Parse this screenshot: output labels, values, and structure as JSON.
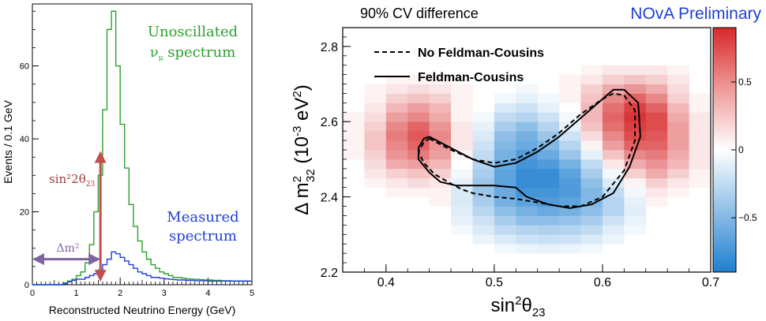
{
  "chart_data": [
    {
      "type": "line",
      "xlabel": "Reconstructed Neutrino Energy (GeV)",
      "ylabel": "Events / 0.1 GeV",
      "xlim": [
        0,
        5
      ],
      "ylim": [
        0,
        77
      ],
      "x_ticks": [
        "0",
        "1",
        "2",
        "3",
        "4",
        "5"
      ],
      "y_ticks": [
        "0",
        "20",
        "40",
        "60"
      ],
      "bin_edges_start": 0.0,
      "bin_width": 0.1,
      "series": [
        {
          "name": "Unoscillated ν_μ spectrum",
          "color": "#2ca02c",
          "values": [
            0,
            0,
            0,
            0,
            0,
            0,
            0,
            0.5,
            1,
            1.5,
            2.5,
            3.5,
            6,
            11,
            20,
            30,
            48,
            70,
            75,
            60,
            44,
            32,
            22,
            16,
            12,
            9,
            7,
            5.5,
            4.5,
            3.5,
            3,
            2.5,
            2,
            2,
            1.8,
            1.6,
            1.5,
            1.5,
            1.4,
            1.3,
            1.3,
            1.2,
            1.2,
            1.1,
            1.1,
            1.0,
            1.0,
            1.0,
            1.0,
            1.0
          ]
        },
        {
          "name": "Measured spectrum",
          "color": "#1f3fd8",
          "values": [
            0,
            0,
            0,
            0,
            0,
            0,
            0,
            0.3,
            0.8,
            1.2,
            1.5,
            1.5,
            2,
            2.5,
            3,
            4,
            5.5,
            7,
            9,
            8.5,
            7.5,
            6.5,
            5.5,
            4.5,
            3.5,
            3,
            2.5,
            2,
            2,
            1.8,
            1.6,
            1.5,
            1.4,
            1.3,
            1.3,
            1.2,
            1.2,
            1.1,
            1.1,
            1.1,
            1.0,
            1.0,
            1.0,
            1.0,
            1.0,
            1.0,
            1.0,
            1.0,
            1.0,
            1.0
          ]
        }
      ],
      "annotations": {
        "unosc_line1": "Unoscillated",
        "unosc_line2": "ν",
        "unosc_sub": "μ",
        "unosc_line2b": " spectrum",
        "meas_line1": "Measured",
        "meas_line2": "spectrum",
        "sin_label": "sin²2θ",
        "sin_sub": "23",
        "dm_label": "Δm²",
        "sin_arrow_x": 1.55,
        "sin_arrow_ymin": 1.5,
        "sin_arrow_ymax": 36,
        "dm_arrow_xmin": 0,
        "dm_arrow_xmax": 1.55,
        "dm_arrow_y": 7,
        "sin_color": "#c0504d",
        "dm_color": "#8064a2"
      }
    },
    {
      "type": "heatmap",
      "title": "90% CV difference",
      "corner_label": "NOvA Preliminary",
      "xlabel": "sin²θ23",
      "ylabel": "Δ m²32 (10⁻³ eV²)",
      "xlim": [
        0.36,
        0.7
      ],
      "ylim": [
        2.2,
        2.85
      ],
      "x_ticks": [
        "0.4",
        "0.5",
        "0.6",
        "0.7"
      ],
      "y_ticks": [
        "2.2",
        "2.4",
        "2.6",
        "2.8"
      ],
      "colorbar_ticks": [
        "0.5",
        "0",
        "−0.5"
      ],
      "zlim": [
        -0.9,
        0.9
      ],
      "grid": {
        "x0": 0.36,
        "dx": 0.02,
        "nx": 17,
        "y0": 2.2,
        "dy": 0.025,
        "ny": 26,
        "rows_bottom_to_top": [
          [
            0,
            0,
            0,
            0,
            0,
            0,
            0,
            0,
            0,
            0,
            0,
            0,
            0,
            0,
            0,
            0,
            0
          ],
          [
            0,
            0,
            0,
            0,
            0,
            0,
            0,
            0,
            0,
            0,
            0,
            0,
            0,
            0,
            0,
            0,
            0
          ],
          [
            0,
            0,
            0,
            0,
            0,
            0,
            0,
            -0.05,
            -0.08,
            -0.1,
            -0.08,
            -0.05,
            0,
            0,
            0,
            0,
            0
          ],
          [
            0,
            0,
            0,
            0,
            0,
            0,
            -0.08,
            -0.15,
            -0.2,
            -0.22,
            -0.2,
            -0.15,
            -0.08,
            0,
            0,
            0,
            0
          ],
          [
            0,
            0,
            0,
            0,
            0,
            -0.05,
            -0.15,
            -0.25,
            -0.3,
            -0.32,
            -0.3,
            -0.25,
            -0.12,
            -0.05,
            0,
            0,
            0
          ],
          [
            0,
            0,
            0,
            0,
            0,
            -0.1,
            -0.2,
            -0.35,
            -0.45,
            -0.45,
            -0.42,
            -0.35,
            -0.2,
            -0.08,
            0,
            0,
            0
          ],
          [
            0,
            0,
            0,
            0,
            0,
            -0.12,
            -0.28,
            -0.45,
            -0.55,
            -0.6,
            -0.55,
            -0.45,
            -0.3,
            -0.12,
            0,
            0,
            0
          ],
          [
            0,
            0,
            0,
            0,
            0.05,
            -0.15,
            -0.35,
            -0.55,
            -0.65,
            -0.7,
            -0.65,
            -0.5,
            -0.3,
            -0.1,
            0.05,
            0,
            0
          ],
          [
            0,
            0,
            0.05,
            0.05,
            0.05,
            -0.15,
            -0.4,
            -0.6,
            -0.75,
            -0.75,
            -0.7,
            -0.5,
            -0.25,
            -0.05,
            0.1,
            0.05,
            0
          ],
          [
            0,
            0.05,
            0.1,
            0.15,
            0.1,
            -0.1,
            -0.4,
            -0.65,
            -0.8,
            -0.8,
            -0.7,
            -0.45,
            -0.15,
            0.05,
            0.2,
            0.1,
            0.05
          ],
          [
            0,
            0.1,
            0.2,
            0.25,
            0.2,
            -0.05,
            -0.35,
            -0.65,
            -0.8,
            -0.8,
            -0.65,
            -0.35,
            -0.05,
            0.2,
            0.35,
            0.2,
            0.05
          ],
          [
            0,
            0.15,
            0.35,
            0.4,
            0.3,
            0,
            -0.3,
            -0.6,
            -0.75,
            -0.7,
            -0.55,
            -0.25,
            0.1,
            0.35,
            0.45,
            0.3,
            0.1
          ],
          [
            0.05,
            0.2,
            0.45,
            0.55,
            0.4,
            0.05,
            -0.25,
            -0.55,
            -0.7,
            -0.6,
            -0.4,
            -0.1,
            0.25,
            0.5,
            0.55,
            0.35,
            0.1
          ],
          [
            0.05,
            0.25,
            0.5,
            0.65,
            0.45,
            0.1,
            -0.2,
            -0.5,
            -0.6,
            -0.5,
            -0.3,
            0.05,
            0.4,
            0.65,
            0.65,
            0.4,
            0.1
          ],
          [
            0.05,
            0.25,
            0.55,
            0.7,
            0.5,
            0.1,
            -0.15,
            -0.45,
            -0.55,
            -0.4,
            -0.2,
            0.15,
            0.5,
            0.75,
            0.7,
            0.4,
            0.1
          ],
          [
            0.05,
            0.2,
            0.5,
            0.65,
            0.45,
            0.1,
            -0.1,
            -0.35,
            -0.45,
            -0.3,
            -0.1,
            0.25,
            0.6,
            0.8,
            0.75,
            0.4,
            0.1
          ],
          [
            0.05,
            0.15,
            0.4,
            0.5,
            0.35,
            0.05,
            -0.05,
            -0.25,
            -0.3,
            -0.2,
            -0.05,
            0.3,
            0.65,
            0.85,
            0.75,
            0.35,
            0.1
          ],
          [
            0,
            0.1,
            0.3,
            0.4,
            0.3,
            0.05,
            0,
            -0.15,
            -0.2,
            -0.1,
            0,
            0.3,
            0.6,
            0.8,
            0.65,
            0.3,
            0.05
          ],
          [
            0,
            0.05,
            0.2,
            0.25,
            0.2,
            0.05,
            0,
            -0.05,
            -0.1,
            -0.05,
            0.05,
            0.25,
            0.5,
            0.65,
            0.5,
            0.2,
            0.05
          ],
          [
            0,
            0.05,
            0.1,
            0.15,
            0.1,
            0.05,
            0,
            0,
            -0.05,
            0,
            0.05,
            0.2,
            0.35,
            0.45,
            0.35,
            0.15,
            0
          ],
          [
            0,
            0,
            0.05,
            0.05,
            0.05,
            0,
            0,
            0,
            0,
            0,
            0.05,
            0.1,
            0.2,
            0.25,
            0.2,
            0.1,
            0
          ],
          [
            0,
            0,
            0,
            0,
            0,
            0,
            0,
            0,
            0,
            0,
            0,
            0.05,
            0.1,
            0.1,
            0.1,
            0.05,
            0
          ],
          [
            0,
            0,
            0,
            0,
            0,
            0,
            0,
            0,
            0,
            0,
            0,
            0,
            0,
            0,
            0,
            0,
            0
          ],
          [
            0,
            0,
            0,
            0,
            0,
            0,
            0,
            0,
            0,
            0,
            0,
            0,
            0,
            0,
            0,
            0,
            0
          ],
          [
            0,
            0,
            0,
            0,
            0,
            0,
            0,
            0,
            0,
            0,
            0,
            0,
            0,
            0,
            0,
            0,
            0
          ],
          [
            0,
            0,
            0,
            0,
            0,
            0,
            0,
            0,
            0,
            0,
            0,
            0,
            0,
            0,
            0,
            0,
            0
          ]
        ]
      },
      "series": [
        {
          "name": "No Feldman-Cousins",
          "style": "dashed",
          "x": [
            0.44,
            0.46,
            0.48,
            0.5,
            0.52,
            0.54,
            0.56,
            0.58,
            0.6,
            0.61,
            0.62,
            0.63,
            0.63,
            0.62,
            0.6,
            0.58,
            0.56,
            0.54,
            0.52,
            0.5,
            0.48,
            0.47,
            0.46,
            0.445,
            0.435,
            0.43,
            0.435,
            0.44
          ],
          "y": [
            2.555,
            2.525,
            2.5,
            2.49,
            2.5,
            2.53,
            2.57,
            2.62,
            2.66,
            2.675,
            2.67,
            2.63,
            2.55,
            2.47,
            2.4,
            2.375,
            2.375,
            2.385,
            2.395,
            2.4,
            2.41,
            2.42,
            2.435,
            2.46,
            2.49,
            2.52,
            2.545,
            2.555
          ]
        },
        {
          "name": "Feldman-Cousins",
          "style": "solid",
          "x": [
            0.44,
            0.46,
            0.48,
            0.5,
            0.52,
            0.54,
            0.56,
            0.58,
            0.6,
            0.61,
            0.62,
            0.633,
            0.635,
            0.625,
            0.61,
            0.59,
            0.57,
            0.55,
            0.53,
            0.52,
            0.5,
            0.48,
            0.465,
            0.45,
            0.44,
            0.43,
            0.43,
            0.435,
            0.44
          ],
          "y": [
            2.56,
            2.53,
            2.5,
            2.48,
            2.49,
            2.52,
            2.56,
            2.61,
            2.66,
            2.685,
            2.685,
            2.65,
            2.56,
            2.48,
            2.41,
            2.38,
            2.37,
            2.38,
            2.4,
            2.425,
            2.43,
            2.43,
            2.43,
            2.44,
            2.465,
            2.5,
            2.53,
            2.555,
            2.56
          ]
        }
      ]
    }
  ]
}
